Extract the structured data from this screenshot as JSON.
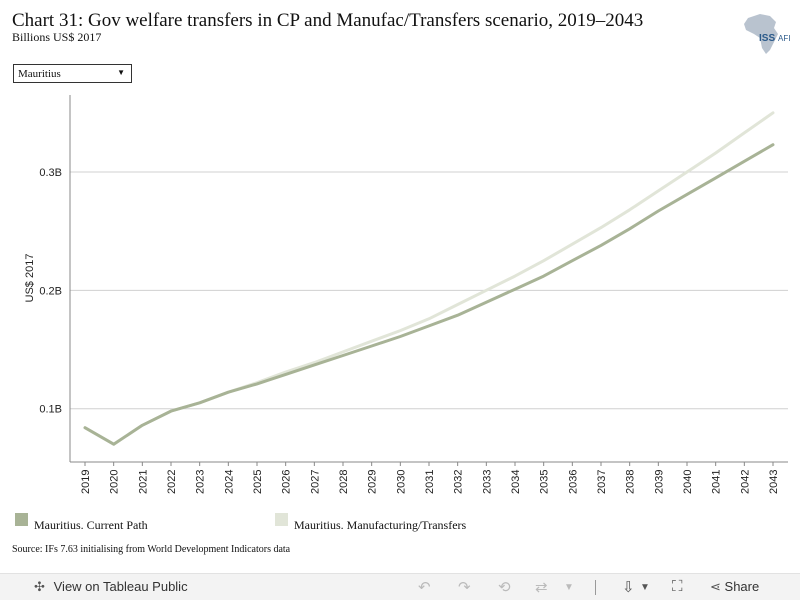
{
  "header": {
    "title": "Chart 31: Gov welfare transfers in CP and Manufac/Transfers scenario, 2019–2043",
    "subtitle": "Billions US$ 2017",
    "logo_text": "ISS",
    "logo_text_2": "AFI"
  },
  "filter": {
    "selected": "Mauritius"
  },
  "colors": {
    "current_path": "#a8b396",
    "manufacturing": "#e1e5d8",
    "grid": "#d0d0d0",
    "axis": "#888888"
  },
  "chart_data": {
    "type": "line",
    "x": [
      2019,
      2020,
      2021,
      2022,
      2023,
      2024,
      2025,
      2026,
      2027,
      2028,
      2029,
      2030,
      2031,
      2032,
      2033,
      2034,
      2035,
      2036,
      2037,
      2038,
      2039,
      2040,
      2041,
      2042,
      2043
    ],
    "series": [
      {
        "name": "Mauritius. Current Path",
        "values": [
          0.084,
          0.07,
          0.086,
          0.098,
          0.105,
          0.114,
          0.121,
          0.129,
          0.137,
          0.145,
          0.153,
          0.161,
          0.17,
          0.179,
          0.19,
          0.201,
          0.212,
          0.225,
          0.238,
          0.252,
          0.267,
          0.281,
          0.295,
          0.309,
          0.323
        ]
      },
      {
        "name": "Mauritius. Manufacturing/Transfers",
        "values": [
          0.084,
          0.07,
          0.086,
          0.098,
          0.105,
          0.114,
          0.122,
          0.131,
          0.139,
          0.148,
          0.157,
          0.166,
          0.176,
          0.188,
          0.2,
          0.212,
          0.225,
          0.239,
          0.253,
          0.268,
          0.284,
          0.3,
          0.316,
          0.333,
          0.35
        ]
      }
    ],
    "ylabel": "US$ 2017",
    "yticks": [
      0.1,
      0.2,
      0.3
    ],
    "ytick_labels": [
      "0.1B",
      "0.2B",
      "0.3B"
    ],
    "ylim": [
      0.055,
      0.365
    ],
    "grid": true,
    "legend_position": "bottom"
  },
  "legend": {
    "item1": "Mauritius. Current Path",
    "item2": "Mauritius. Manufacturing/Transfers"
  },
  "source": "Source: IFs 7.63 initialising from World Development Indicators data",
  "toolbar": {
    "view_label": "View on Tableau Public",
    "share_label": "Share"
  }
}
